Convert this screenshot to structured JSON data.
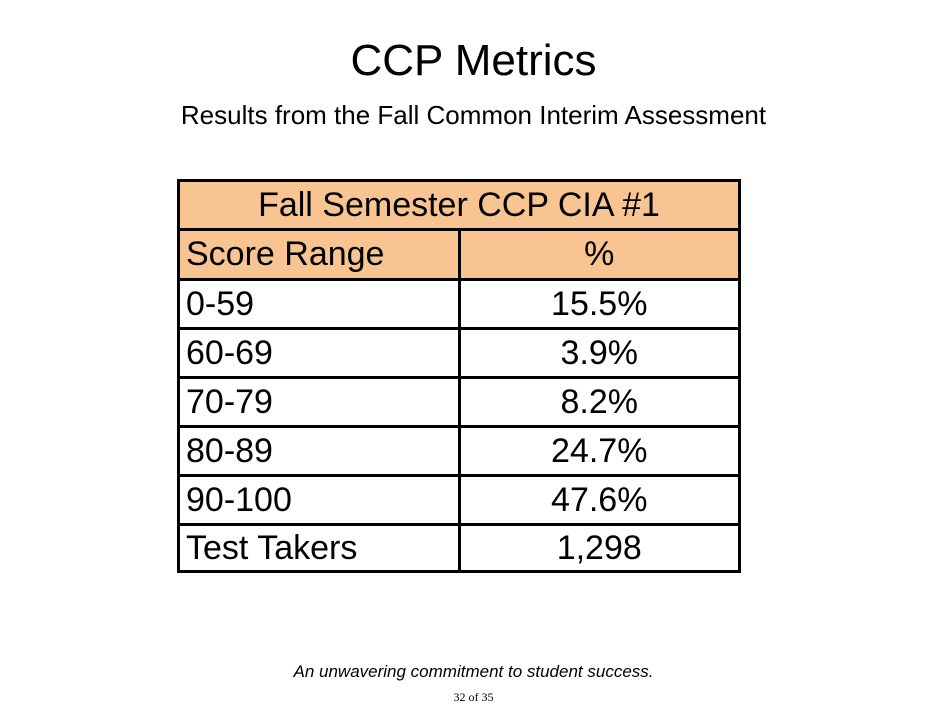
{
  "title": "CCP Metrics",
  "subtitle": "Results from the Fall Common Interim Assessment",
  "table": {
    "title": "Fall Semester CCP CIA #1",
    "columns": [
      "Score Range",
      "%"
    ],
    "rows": [
      {
        "range": "0-59",
        "pct": "15.5%"
      },
      {
        "range": "60-69",
        "pct": "3.9%"
      },
      {
        "range": "70-79",
        "pct": "8.2%"
      },
      {
        "range": "80-89",
        "pct": "24.7%"
      },
      {
        "range": "90-100",
        "pct": "47.6%"
      }
    ],
    "summary": {
      "label": "Test Takers",
      "value": "1,298"
    }
  },
  "footer": {
    "motto": "An unwavering commitment to student success.",
    "page": "32 of 35"
  },
  "colors": {
    "header_bg": "#F8C491",
    "border": "#000000",
    "background": "#FFFFFF"
  },
  "chart_data": {
    "type": "table",
    "title": "Fall Semester CCP CIA #1",
    "columns": [
      "Score Range",
      "%"
    ],
    "categories": [
      "0-59",
      "60-69",
      "70-79",
      "80-89",
      "90-100"
    ],
    "values": [
      15.5,
      3.9,
      8.2,
      24.7,
      47.6
    ],
    "test_takers": 1298
  }
}
